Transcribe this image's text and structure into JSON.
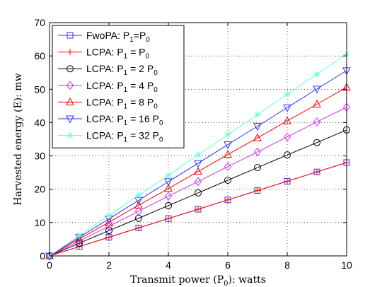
{
  "chart_data": {
    "type": "line",
    "x": [
      0,
      1,
      2,
      3,
      4,
      5,
      6,
      7,
      8,
      9,
      10
    ],
    "xlim": [
      0,
      10
    ],
    "ylim": [
      0,
      70
    ],
    "xticks": [
      0,
      2,
      4,
      6,
      8,
      10
    ],
    "yticks": [
      0,
      10,
      20,
      30,
      40,
      50,
      60,
      70
    ],
    "xlabel": "Transmit power (P",
    "xlabel_sub": "0",
    "xlabel_tail": "): watts",
    "ylabel": "Harvested energy (E): mw",
    "grid": true,
    "legend_position": "top-left",
    "series": [
      {
        "name": "FwoPA: P",
        "sub1": "1",
        "mid": "=P",
        "sub2": "0",
        "tail": "",
        "color": "#3333ff",
        "marker": "square",
        "values": [
          0,
          2.8,
          5.6,
          8.4,
          11.2,
          14.0,
          16.8,
          19.6,
          22.4,
          25.2,
          28.0
        ]
      },
      {
        "name": "LCPA: P",
        "sub1": "1",
        "mid": " = P",
        "sub2": "0",
        "tail": "",
        "color": "#ff0000",
        "marker": "plus",
        "values": [
          0,
          2.8,
          5.6,
          8.4,
          11.2,
          14.0,
          16.8,
          19.6,
          22.4,
          25.2,
          28.0
        ]
      },
      {
        "name": "LCPA: P",
        "sub1": "1",
        "mid": " = 2 P",
        "sub2": "0",
        "tail": "",
        "color": "#000000",
        "marker": "circle",
        "values": [
          0,
          3.8,
          7.6,
          11.3,
          15.1,
          18.9,
          22.7,
          26.5,
          30.3,
          34.0,
          37.8
        ]
      },
      {
        "name": "LCPA: P",
        "sub1": "1",
        "mid": " = 4 P",
        "sub2": "0",
        "tail": "",
        "color": "#cc33ff",
        "marker": "diamond",
        "values": [
          0,
          4.5,
          8.9,
          13.4,
          17.9,
          22.3,
          26.8,
          31.2,
          35.7,
          40.2,
          44.6
        ]
      },
      {
        "name": "LCPA: P",
        "sub1": "1",
        "mid": " = 8 P",
        "sub2": "0",
        "tail": "",
        "color": "#ff0000",
        "marker": "triangle-up",
        "values": [
          0,
          5.1,
          10.1,
          15.2,
          20.2,
          25.3,
          30.4,
          35.4,
          40.5,
          45.5,
          50.6
        ]
      },
      {
        "name": "LCPA: P",
        "sub1": "1",
        "mid": " = 16 P",
        "sub2": "0",
        "tail": "",
        "color": "#3333ff",
        "marker": "triangle-down",
        "values": [
          0,
          5.6,
          11.1,
          16.7,
          22.3,
          27.8,
          33.4,
          38.9,
          44.5,
          50.1,
          55.6
        ]
      },
      {
        "name": "LCPA: P",
        "sub1": "1",
        "mid": " = 32 P",
        "sub2": "0",
        "tail": "",
        "color": "#66ffcc",
        "marker": "asterisk",
        "values": [
          0,
          6.1,
          12.1,
          18.2,
          24.2,
          30.3,
          36.4,
          42.4,
          48.5,
          54.5,
          60.6
        ]
      }
    ]
  }
}
